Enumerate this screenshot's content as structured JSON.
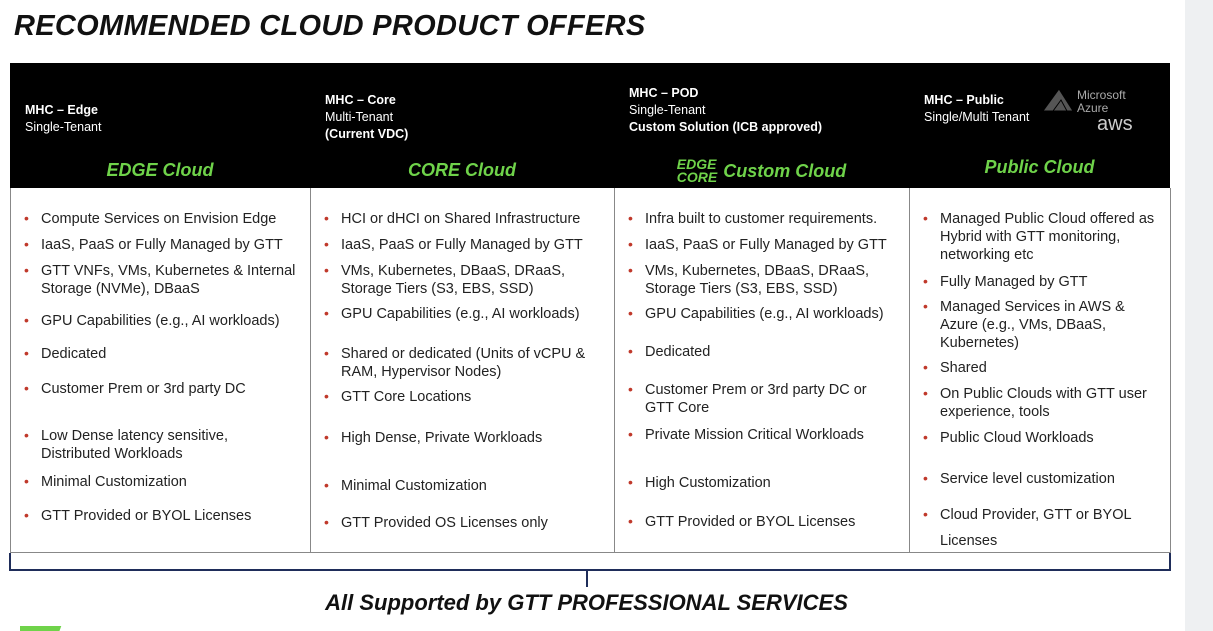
{
  "title": "RECOMMENDED CLOUD PRODUCT OFFERS",
  "columns": [
    {
      "name": "MHC – Edge",
      "tenancy": "Single-Tenant",
      "cloud": "EDGE Cloud",
      "bullets": [
        "Compute Services on Envision Edge",
        "IaaS, PaaS or Fully Managed by GTT",
        "GTT VNFs, VMs, Kubernetes & Internal Storage (NVMe), DBaaS",
        "GPU Capabilities (e.g., AI workloads)",
        "Dedicated",
        "Customer Prem or 3rd party DC",
        "Low Dense latency sensitive, Distributed Workloads",
        "Minimal Customization",
        "GTT Provided or BYOL Licenses"
      ]
    },
    {
      "name": "MHC – Core",
      "tenancy": "Multi-Tenant",
      "note": "(Current VDC)",
      "cloud": "CORE Cloud",
      "bullets": [
        "HCI or dHCI on Shared Infrastructure",
        "IaaS, PaaS or Fully Managed by GTT",
        "VMs, Kubernetes, DBaaS, DRaaS, Storage Tiers (S3, EBS, SSD)",
        "GPU Capabilities (e.g., AI workloads)",
        "Shared or dedicated (Units of vCPU & RAM, Hypervisor Nodes)",
        "GTT Core Locations",
        "High Dense, Private Workloads",
        "Minimal Customization",
        "GTT Provided OS Licenses only"
      ]
    },
    {
      "name": "MHC – POD",
      "tenancy": "Single-Tenant",
      "note": "Custom Solution (ICB approved)",
      "cloud_prefix": [
        "EDGE",
        "CORE"
      ],
      "cloud": "Custom Cloud",
      "bullets": [
        "Infra built to customer requirements.",
        "IaaS, PaaS or Fully Managed by GTT",
        "VMs, Kubernetes, DBaaS, DRaaS, Storage Tiers (S3, EBS, SSD)",
        "GPU Capabilities (e.g., AI workloads)",
        "Dedicated",
        "Customer Prem or 3rd party DC or GTT Core",
        "Private Mission Critical Workloads",
        "High Customization",
        "GTT Provided or BYOL Licenses"
      ]
    },
    {
      "name": "MHC – Public",
      "tenancy": "Single/Multi Tenant",
      "logos": [
        "Microsoft",
        "Azure",
        "aws"
      ],
      "cloud": "Public Cloud",
      "bullets": [
        "Managed Public Cloud offered as Hybrid with GTT monitoring, networking etc",
        "Fully Managed by GTT",
        "Managed Services in AWS & Azure (e.g., VMs, DBaaS, Kubernetes)",
        "Shared",
        "On Public Clouds with GTT user experience, tools",
        "Public Cloud Workloads",
        "Service level customization",
        "Cloud Provider, GTT or BYOL Licenses"
      ]
    }
  ],
  "footer": "All Supported by GTT PROFESSIONAL SERVICES"
}
